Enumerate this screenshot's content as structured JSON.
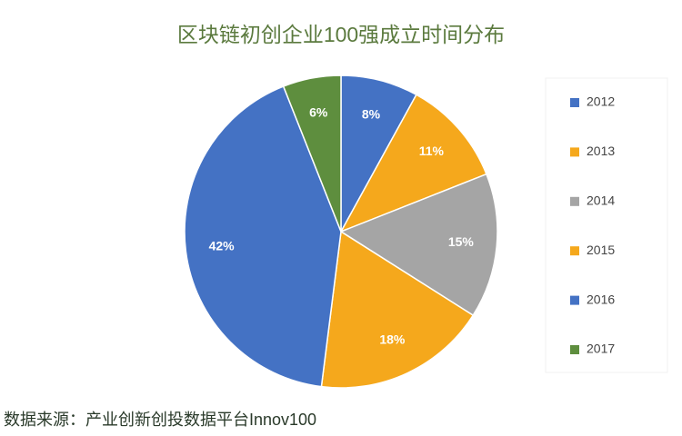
{
  "chart_data": {
    "type": "pie",
    "title": "区块链初创企业100强成立时间分布",
    "categories": [
      "2012",
      "2013",
      "2014",
      "2015",
      "2016",
      "2017"
    ],
    "values": [
      8,
      11,
      15,
      18,
      42,
      6
    ],
    "value_labels": [
      "8%",
      "11%",
      "15%",
      "18%",
      "42%",
      "6%"
    ],
    "colors": [
      "#4472c4",
      "#f5a81c",
      "#a5a5a5",
      "#f5a81c",
      "#4472c4",
      "#5e8e3e"
    ],
    "legend": "right",
    "source": "数据来源：产业创新创投数据平台Innov100"
  }
}
